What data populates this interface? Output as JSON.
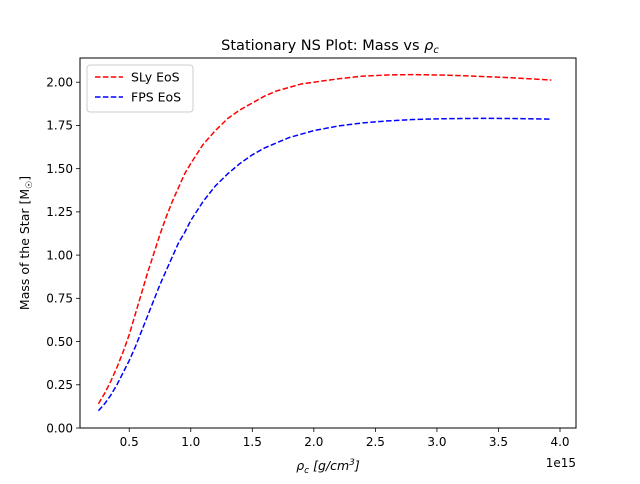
{
  "chart_data": {
    "type": "line",
    "title_main": "Stationary NS Plot: Mass vs ",
    "title_sym": "ρ",
    "title_sub": "c",
    "xlabel_sym": "ρ",
    "xlabel_sub": "c",
    "xlabel_rest": " [g/cm",
    "xlabel_sup": "3",
    "xlabel_end": "]",
    "ylabel": "Mass of the Star [M",
    "ylabel_sub": "☉",
    "ylabel_end": "]",
    "x_offset_text": "1e15",
    "xlim": [
      0.1,
      4.13
    ],
    "ylim": [
      0.0,
      2.14
    ],
    "xticks": [
      0.5,
      1.0,
      1.5,
      2.0,
      2.5,
      3.0,
      3.5,
      4.0
    ],
    "xtick_labels": [
      "0.5",
      "1.0",
      "1.5",
      "2.0",
      "2.5",
      "3.0",
      "3.5",
      "4.0"
    ],
    "yticks": [
      0.0,
      0.25,
      0.5,
      0.75,
      1.0,
      1.25,
      1.5,
      1.75,
      2.0
    ],
    "ytick_labels": [
      "0.00",
      "0.25",
      "0.50",
      "0.75",
      "1.00",
      "1.25",
      "1.50",
      "1.75",
      "2.00"
    ],
    "grid": false,
    "legend_position": "top-left",
    "series": [
      {
        "name": "SLy EoS",
        "color": "#ff0000",
        "style": "dashed",
        "x": [
          0.25,
          0.3,
          0.35,
          0.4,
          0.45,
          0.5,
          0.55,
          0.6,
          0.65,
          0.7,
          0.75,
          0.8,
          0.85,
          0.9,
          0.95,
          1.0,
          1.1,
          1.2,
          1.3,
          1.4,
          1.5,
          1.6,
          1.7,
          1.8,
          1.9,
          2.0,
          2.2,
          2.4,
          2.6,
          2.8,
          3.0,
          3.2,
          3.4,
          3.6,
          3.8,
          3.93
        ],
        "y": [
          0.14,
          0.2,
          0.27,
          0.35,
          0.44,
          0.54,
          0.66,
          0.78,
          0.9,
          1.01,
          1.12,
          1.22,
          1.31,
          1.39,
          1.47,
          1.53,
          1.64,
          1.72,
          1.79,
          1.84,
          1.88,
          1.92,
          1.95,
          1.97,
          1.99,
          2.0,
          2.02,
          2.035,
          2.042,
          2.044,
          2.042,
          2.038,
          2.032,
          2.026,
          2.018,
          2.012
        ]
      },
      {
        "name": "FPS EoS",
        "color": "#0000ff",
        "style": "dashed",
        "x": [
          0.25,
          0.3,
          0.35,
          0.4,
          0.45,
          0.5,
          0.55,
          0.6,
          0.65,
          0.7,
          0.75,
          0.8,
          0.85,
          0.9,
          0.95,
          1.0,
          1.1,
          1.2,
          1.3,
          1.4,
          1.5,
          1.6,
          1.7,
          1.8,
          1.9,
          2.0,
          2.2,
          2.4,
          2.6,
          2.8,
          3.0,
          3.2,
          3.4,
          3.6,
          3.8,
          3.93
        ],
        "y": [
          0.1,
          0.14,
          0.19,
          0.25,
          0.32,
          0.39,
          0.47,
          0.56,
          0.65,
          0.74,
          0.83,
          0.91,
          0.99,
          1.07,
          1.13,
          1.2,
          1.31,
          1.4,
          1.47,
          1.53,
          1.58,
          1.62,
          1.65,
          1.68,
          1.7,
          1.72,
          1.747,
          1.765,
          1.776,
          1.784,
          1.788,
          1.79,
          1.791,
          1.79,
          1.788,
          1.786
        ]
      }
    ]
  }
}
